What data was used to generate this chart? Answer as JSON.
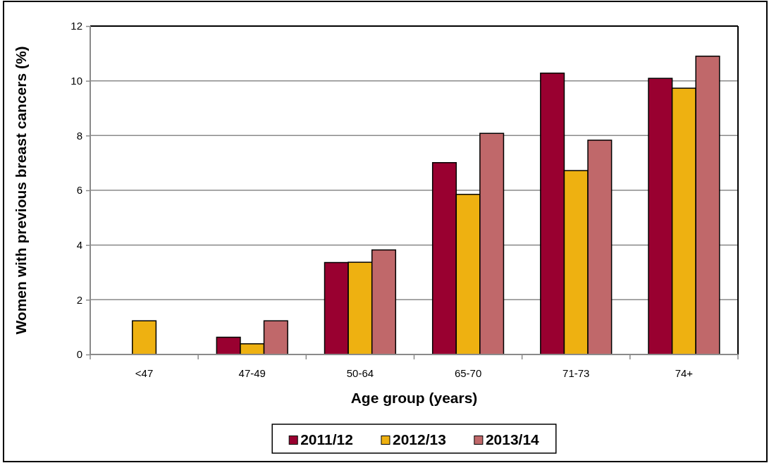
{
  "chart_data": {
    "type": "bar",
    "xlabel": "Age group (years)",
    "ylabel": "Women with previous breast cancers (%)",
    "categories": [
      "<47",
      "47-49",
      "50-64",
      "65-70",
      "71-73",
      "74+"
    ],
    "series": [
      {
        "name": "2011/12",
        "color": "#990030",
        "values": [
          null,
          0.63,
          3.36,
          7.01,
          10.28,
          10.09
        ]
      },
      {
        "name": "2012/13",
        "color": "#eeb111",
        "values": [
          1.23,
          0.39,
          3.37,
          5.85,
          6.72,
          9.73
        ]
      },
      {
        "name": "2013/14",
        "color": "#c0686a",
        "values": [
          null,
          1.23,
          3.82,
          8.08,
          7.83,
          10.9
        ]
      }
    ],
    "ylim": [
      0,
      12
    ],
    "yticks": [
      0,
      2,
      4,
      6,
      8,
      10,
      12
    ],
    "grid": "y",
    "legend": "bottom"
  }
}
